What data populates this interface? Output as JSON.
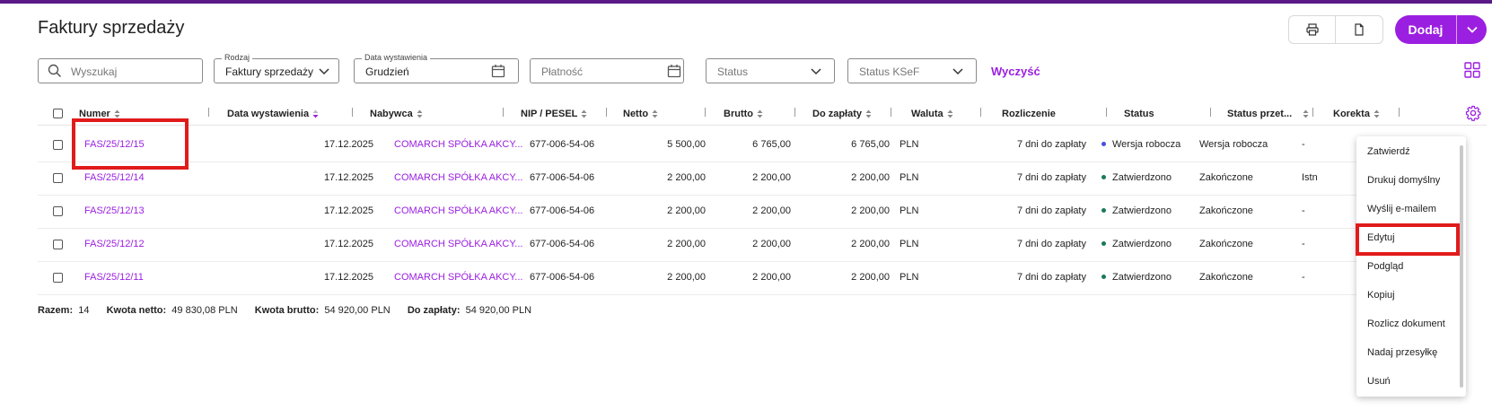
{
  "title": "Faktury sprzedaży",
  "toolbar": {
    "add_label": "Dodaj",
    "print_icon": "printer-icon",
    "export_icon": "document-export-icon"
  },
  "filters": {
    "search_placeholder": "Wyszukaj",
    "rodzaj_label": "Rodzaj",
    "rodzaj_value": "Faktury sprzedaży",
    "date_label": "Data wystawienia",
    "date_value": "Grudzień",
    "platnosc_placeholder": "Płatność",
    "status_placeholder": "Status",
    "ksef_placeholder": "Status KSeF",
    "clear_label": "Wyczyść"
  },
  "columns": [
    "Numer",
    "Data wystawienia",
    "Nabywca",
    "NIP / PESEL",
    "Netto",
    "Brutto",
    "Do zapłaty",
    "Waluta",
    "Rozliczenie",
    "Status",
    "Status przet...",
    "Korekta"
  ],
  "rows": [
    {
      "numer": "FAS/25/12/15",
      "data": "17.12.2025",
      "nabywca": "COMARCH SPÓŁKA AKCY...",
      "nip": "677-006-54-06",
      "netto": "5 500,00",
      "brutto": "6 765,00",
      "dozaplaty": "6 765,00",
      "waluta": "PLN",
      "rozliczenie": "7 dni do zapłaty",
      "status": "Wersja robocza",
      "status_color": "#4a4ee0",
      "status_przet": "Wersja robocza",
      "korekta": "-"
    },
    {
      "numer": "FAS/25/12/14",
      "data": "17.12.2025",
      "nabywca": "COMARCH SPÓŁKA AKCY...",
      "nip": "677-006-54-06",
      "netto": "2 200,00",
      "brutto": "2 200,00",
      "dozaplaty": "2 200,00",
      "waluta": "PLN",
      "rozliczenie": "7 dni do zapłaty",
      "status": "Zatwierdzono",
      "status_color": "#1a7a55",
      "status_przet": "Zakończone",
      "korekta": "Istn"
    },
    {
      "numer": "FAS/25/12/13",
      "data": "17.12.2025",
      "nabywca": "COMARCH SPÓŁKA AKCY...",
      "nip": "677-006-54-06",
      "netto": "2 200,00",
      "brutto": "2 200,00",
      "dozaplaty": "2 200,00",
      "waluta": "PLN",
      "rozliczenie": "7 dni do zapłaty",
      "status": "Zatwierdzono",
      "status_color": "#1a7a55",
      "status_przet": "Zakończone",
      "korekta": "-"
    },
    {
      "numer": "FAS/25/12/12",
      "data": "17.12.2025",
      "nabywca": "COMARCH SPÓŁKA AKCY...",
      "nip": "677-006-54-06",
      "netto": "2 200,00",
      "brutto": "2 200,00",
      "dozaplaty": "2 200,00",
      "waluta": "PLN",
      "rozliczenie": "7 dni do zapłaty",
      "status": "Zatwierdzono",
      "status_color": "#1a7a55",
      "status_przet": "Zakończone",
      "korekta": "-"
    },
    {
      "numer": "FAS/25/12/11",
      "data": "17.12.2025",
      "nabywca": "COMARCH SPÓŁKA AKCY...",
      "nip": "677-006-54-06",
      "netto": "2 200,00",
      "brutto": "2 200,00",
      "dozaplaty": "2 200,00",
      "waluta": "PLN",
      "rozliczenie": "7 dni do zapłaty",
      "status": "Zatwierdzono",
      "status_color": "#1a7a55",
      "status_przet": "Zakończone",
      "korekta": "-"
    }
  ],
  "summary": {
    "razem_label": "Razem:",
    "razem_value": "14",
    "netto_label": "Kwota netto:",
    "netto_value": "49 830,08 PLN",
    "brutto_label": "Kwota brutto:",
    "brutto_value": "54 920,00 PLN",
    "dozaplaty_label": "Do zapłaty:",
    "dozaplaty_value": "54 920,00 PLN"
  },
  "menu": [
    "Zatwierdź",
    "Drukuj domyślny",
    "Wyślij e-mailem",
    "Edytuj",
    "Podgląd",
    "Kopiuj",
    "Rozlicz dokument",
    "Nadaj przesyłkę",
    "Usuń"
  ],
  "colors": {
    "accent": "#9b1fe0",
    "topbar": "#5a1a86",
    "highlight": "#e11b1b"
  }
}
